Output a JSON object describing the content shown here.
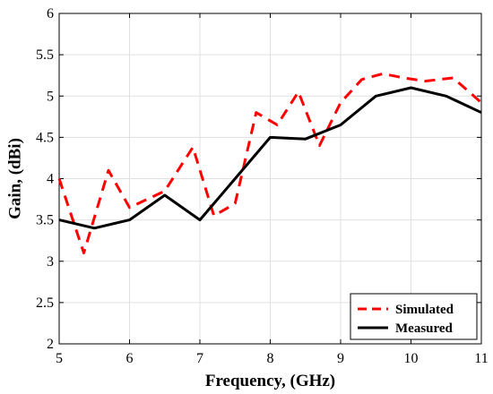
{
  "chart_data": {
    "type": "line",
    "xlabel": "Frequency, (GHz)",
    "ylabel": "Gain, (dBi)",
    "xlim": [
      5,
      11
    ],
    "ylim": [
      2,
      6
    ],
    "xticks": [
      5,
      6,
      7,
      8,
      9,
      10,
      11
    ],
    "yticks": [
      2,
      2.5,
      3,
      3.5,
      4,
      4.5,
      5,
      5.5,
      6
    ],
    "ytick_labels": [
      "2",
      "2.5",
      "3",
      "3.5",
      "4",
      "4.5",
      "5",
      "5.5",
      "6"
    ],
    "grid": true,
    "legend_position": "bottom-right",
    "series": [
      {
        "name": "Simulated",
        "color": "#ff0000",
        "style": "dashed",
        "x": [
          5.0,
          5.35,
          5.7,
          6.0,
          6.5,
          6.9,
          7.2,
          7.5,
          7.8,
          8.1,
          8.4,
          8.7,
          9.0,
          9.3,
          9.6,
          9.9,
          10.2,
          10.6,
          11.0
        ],
        "y": [
          4.0,
          3.1,
          4.1,
          3.65,
          3.85,
          4.38,
          3.55,
          3.7,
          4.8,
          4.65,
          5.05,
          4.4,
          4.92,
          5.2,
          5.27,
          5.22,
          5.18,
          5.22,
          4.92
        ]
      },
      {
        "name": "Measured",
        "color": "#000000",
        "style": "solid",
        "x": [
          5.0,
          5.5,
          6.0,
          6.5,
          7.0,
          7.5,
          8.0,
          8.5,
          9.0,
          9.5,
          10.0,
          10.5,
          11.0
        ],
        "y": [
          3.5,
          3.4,
          3.5,
          3.8,
          3.5,
          4.0,
          4.5,
          4.48,
          4.65,
          5.0,
          5.1,
          5.0,
          4.8
        ]
      }
    ]
  }
}
